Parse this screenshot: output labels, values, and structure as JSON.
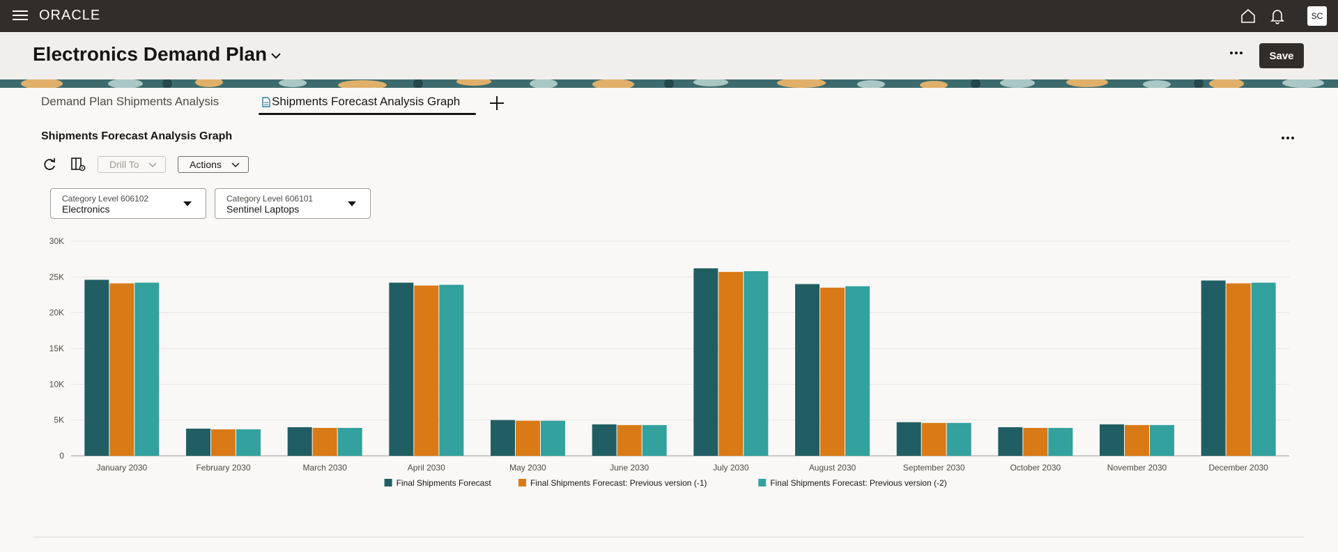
{
  "app": {
    "brand": "ORACLE",
    "user_initials": "SC"
  },
  "header": {
    "title": "Electronics Demand Plan",
    "save_label": "Save"
  },
  "tabs": [
    {
      "label": "Demand Plan Shipments Analysis"
    },
    {
      "label": "Shipments Forecast Analysis Graph"
    }
  ],
  "section": {
    "title": "Shipments Forecast Analysis Graph"
  },
  "toolbar": {
    "drill_label": "Drill To",
    "actions_label": "Actions"
  },
  "filters": [
    {
      "label": "Category Level 606102",
      "value": "Electronics"
    },
    {
      "label": "Category Level 606101",
      "value": "Sentinel Laptops"
    }
  ],
  "colors": {
    "series1": "#215e63",
    "series2": "#d97a16",
    "series3": "#33a19d"
  },
  "chart_data": {
    "type": "bar",
    "title": "",
    "xlabel": "",
    "ylabel": "",
    "ylim": [
      0,
      30000
    ],
    "yticks": [
      "0",
      "5K",
      "10K",
      "15K",
      "20K",
      "25K",
      "30K"
    ],
    "grid": true,
    "legend_position": "bottom",
    "categories": [
      "January 2030",
      "February 2030",
      "March 2030",
      "April 2030",
      "May 2030",
      "June 2030",
      "July 2030",
      "August 2030",
      "September 2030",
      "October 2030",
      "November 2030",
      "December 2030"
    ],
    "series": [
      {
        "name": "Final Shipments Forecast",
        "values": [
          24600,
          3800,
          4000,
          24200,
          5000,
          4400,
          26200,
          24000,
          4700,
          4000,
          4400,
          24500
        ]
      },
      {
        "name": "Final Shipments Forecast: Previous version (-1)",
        "values": [
          24100,
          3700,
          3900,
          23800,
          4900,
          4300,
          25700,
          23500,
          4600,
          3900,
          4300,
          24100
        ]
      },
      {
        "name": "Final Shipments Forecast: Previous version (-2)",
        "values": [
          24200,
          3700,
          3900,
          23900,
          4900,
          4300,
          25800,
          23700,
          4600,
          3900,
          4300,
          24200
        ]
      }
    ]
  }
}
